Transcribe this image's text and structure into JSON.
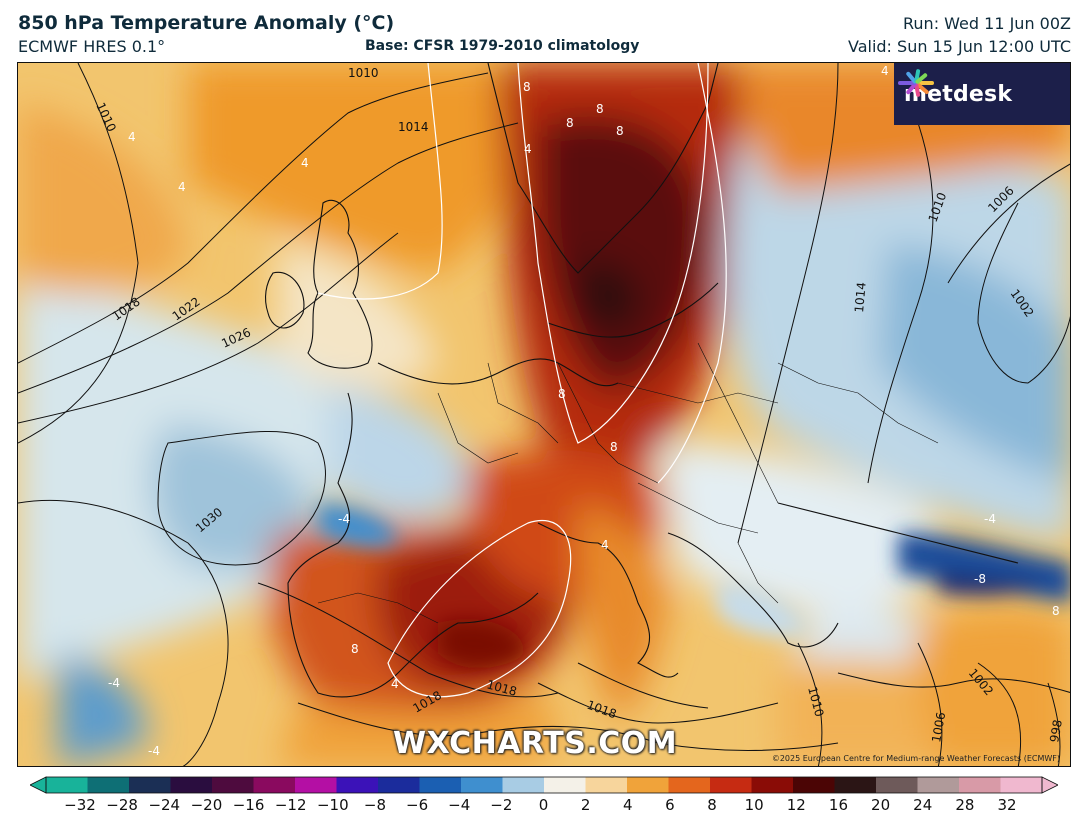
{
  "header": {
    "title": "850 hPa Temperature Anomaly (°C)",
    "model": "ECMWF HRES 0.1°",
    "base": "Base: CFSR 1979-2010 climatology",
    "run": "Run: Wed 11 Jun 00Z",
    "valid": "Valid: Sun 15 Jun 12:00 UTC"
  },
  "logo": {
    "text": "metdesk"
  },
  "map": {
    "watermark": "WXCHARTS.COM",
    "copyright": "©2025 European Centre for Medium-range Weather Forecasts (ECMWF)",
    "isobar_labels": [
      "1010",
      "1014",
      "1010",
      "1018",
      "1022",
      "1026",
      "1030",
      "1018",
      "1018",
      "1018",
      "1010",
      "1006",
      "1002",
      "1014",
      "1010",
      "1002",
      "1006",
      "998"
    ],
    "anomaly_labels": [
      "8",
      "8",
      "8",
      "8",
      "4",
      "4",
      "4",
      "4",
      "8",
      "8",
      "8",
      "-4",
      "4",
      "4",
      "-4",
      "-4",
      "-8",
      "8",
      "4",
      "-4"
    ]
  },
  "colorbar": {
    "ticks": [
      "−32",
      "−28",
      "−24",
      "−20",
      "−16",
      "−12",
      "−10",
      "−8",
      "−6",
      "−4",
      "−2",
      "0",
      "2",
      "4",
      "6",
      "8",
      "10",
      "12",
      "16",
      "20",
      "24",
      "28",
      "32"
    ],
    "colors": [
      "#18b39a",
      "#0e6f75",
      "#1b2f55",
      "#2a0d3f",
      "#4e0b3e",
      "#8a0a5f",
      "#b40fa4",
      "#3b12b8",
      "#1b2c9c",
      "#1b5fb2",
      "#3f8fcf",
      "#a8cce4",
      "#f4f1e8",
      "#f7d59c",
      "#f0a33a",
      "#e4661d",
      "#c62b12",
      "#8a0c06",
      "#4b0505",
      "#2b1515",
      "#6e5a5a",
      "#b09a9a",
      "#d89aa7",
      "#f0b8cf"
    ]
  }
}
